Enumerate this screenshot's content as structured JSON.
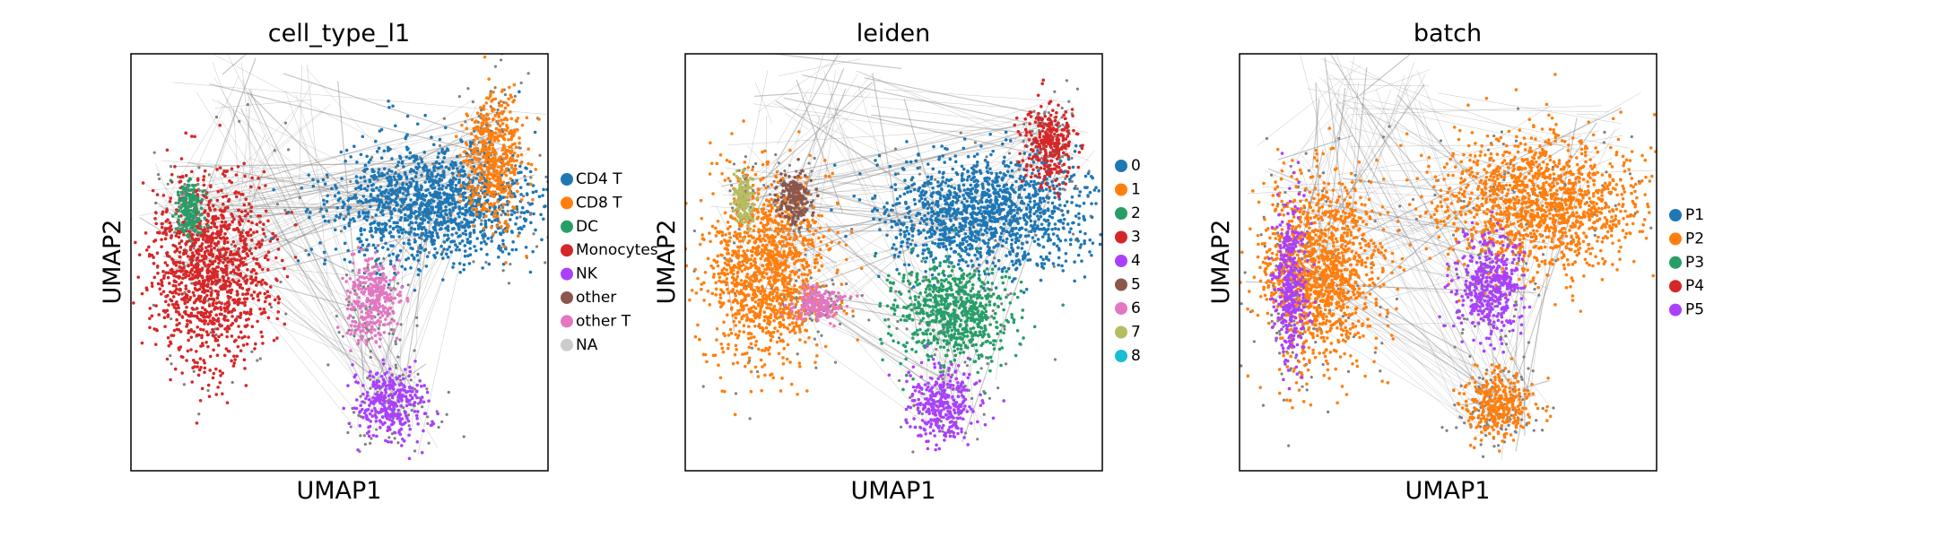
{
  "figure": {
    "panels": [
      {
        "id": "cell-type",
        "title": "cell_type_l1",
        "xlabel": "UMAP1",
        "ylabel": "UMAP2",
        "legend": [
          {
            "label": "CD4 T",
            "color": "#1f77b4"
          },
          {
            "label": "CD8 T",
            "color": "#ff7f0e"
          },
          {
            "label": "DC",
            "color": "#279e68"
          },
          {
            "label": "Monocytes",
            "color": "#d62728"
          },
          {
            "label": "NK",
            "color": "#aa40fc"
          },
          {
            "label": "other",
            "color": "#8c564b"
          },
          {
            "label": "other T",
            "color": "#e377c2"
          },
          {
            "label": "NA",
            "color": "#cccccc"
          }
        ]
      },
      {
        "id": "leiden",
        "title": "leiden",
        "xlabel": "UMAP1",
        "ylabel": "UMAP2",
        "legend": [
          {
            "label": "0",
            "color": "#1f77b4"
          },
          {
            "label": "1",
            "color": "#ff7f0e"
          },
          {
            "label": "2",
            "color": "#279e68"
          },
          {
            "label": "3",
            "color": "#d62728"
          },
          {
            "label": "4",
            "color": "#aa40fc"
          },
          {
            "label": "5",
            "color": "#8c564b"
          },
          {
            "label": "6",
            "color": "#e377c2"
          },
          {
            "label": "7",
            "color": "#b5bd61"
          },
          {
            "label": "8",
            "color": "#17becf"
          }
        ]
      },
      {
        "id": "batch",
        "title": "batch",
        "xlabel": "UMAP1",
        "ylabel": "UMAP2",
        "legend": [
          {
            "label": "P1",
            "color": "#1f77b4"
          },
          {
            "label": "P2",
            "color": "#ff7f0e"
          },
          {
            "label": "P3",
            "color": "#279e68"
          },
          {
            "label": "P4",
            "color": "#d62728"
          },
          {
            "label": "P5",
            "color": "#aa40fc"
          }
        ]
      }
    ]
  },
  "chart_data": [
    {
      "type": "scatter",
      "title": "cell_type_l1",
      "xlabel": "UMAP1",
      "ylabel": "UMAP2",
      "ticks": "none",
      "grid": false,
      "legend_position": "right",
      "edges_color": "#808080",
      "categories": [
        "CD4 T",
        "CD8 T",
        "DC",
        "Monocytes",
        "NK",
        "other",
        "other T",
        "NA"
      ],
      "regions": [
        {
          "name": "Monocytes",
          "color": "#d62728",
          "center": [
            0.19,
            0.52
          ],
          "spread": [
            0.07,
            0.11
          ]
        },
        {
          "name": "DC",
          "color": "#279e68",
          "center": [
            0.14,
            0.37
          ],
          "spread": [
            0.015,
            0.035
          ]
        },
        {
          "name": "CD4 T",
          "color": "#1f77b4",
          "center": [
            0.72,
            0.36
          ],
          "spread": [
            0.12,
            0.07
          ]
        },
        {
          "name": "CD8 T",
          "color": "#ff7f0e",
          "center": [
            0.87,
            0.25
          ],
          "spread": [
            0.035,
            0.08
          ]
        },
        {
          "name": "NK",
          "color": "#aa40fc",
          "center": [
            0.62,
            0.84
          ],
          "spread": [
            0.04,
            0.04
          ]
        },
        {
          "name": "other T",
          "color": "#e377c2",
          "center": [
            0.58,
            0.59
          ],
          "spread": [
            0.03,
            0.05
          ]
        }
      ]
    },
    {
      "type": "scatter",
      "title": "leiden",
      "xlabel": "UMAP1",
      "ylabel": "UMAP2",
      "ticks": "none",
      "grid": false,
      "legend_position": "right",
      "edges_color": "#808080",
      "categories": [
        "0",
        "1",
        "2",
        "3",
        "4",
        "5",
        "6",
        "7",
        "8"
      ],
      "regions": [
        {
          "name": "1",
          "color": "#ff7f0e",
          "center": [
            0.19,
            0.52
          ],
          "spread": [
            0.07,
            0.11
          ]
        },
        {
          "name": "0",
          "color": "#1f77b4",
          "center": [
            0.72,
            0.38
          ],
          "spread": [
            0.12,
            0.07
          ]
        },
        {
          "name": "2",
          "color": "#279e68",
          "center": [
            0.64,
            0.62
          ],
          "spread": [
            0.07,
            0.06
          ]
        },
        {
          "name": "3",
          "color": "#d62728",
          "center": [
            0.87,
            0.22
          ],
          "spread": [
            0.03,
            0.05
          ]
        },
        {
          "name": "4",
          "color": "#aa40fc",
          "center": [
            0.62,
            0.84
          ],
          "spread": [
            0.04,
            0.04
          ]
        },
        {
          "name": "5",
          "color": "#8c564b",
          "center": [
            0.26,
            0.35
          ],
          "spread": [
            0.02,
            0.03
          ]
        },
        {
          "name": "7",
          "color": "#b5bd61",
          "center": [
            0.14,
            0.35
          ],
          "spread": [
            0.012,
            0.03
          ]
        },
        {
          "name": "6",
          "color": "#e377c2",
          "center": [
            0.32,
            0.6
          ],
          "spread": [
            0.03,
            0.02
          ]
        }
      ]
    },
    {
      "type": "scatter",
      "title": "batch",
      "xlabel": "UMAP1",
      "ylabel": "UMAP2",
      "ticks": "none",
      "grid": false,
      "legend_position": "right",
      "edges_color": "#808080",
      "categories": [
        "P1",
        "P2",
        "P3",
        "P4",
        "P5"
      ],
      "regions": [
        {
          "name": "P2",
          "color": "#ff7f0e",
          "center": [
            0.19,
            0.52
          ],
          "spread": [
            0.07,
            0.11
          ]
        },
        {
          "name": "P5",
          "color": "#aa40fc",
          "center": [
            0.12,
            0.55
          ],
          "spread": [
            0.02,
            0.09
          ]
        },
        {
          "name": "P2",
          "color": "#ff7f0e",
          "center": [
            0.72,
            0.36
          ],
          "spread": [
            0.12,
            0.08
          ]
        },
        {
          "name": "P5",
          "color": "#aa40fc",
          "center": [
            0.6,
            0.56
          ],
          "spread": [
            0.04,
            0.06
          ]
        },
        {
          "name": "P2",
          "color": "#ff7f0e",
          "center": [
            0.62,
            0.84
          ],
          "spread": [
            0.04,
            0.04
          ]
        }
      ]
    }
  ]
}
